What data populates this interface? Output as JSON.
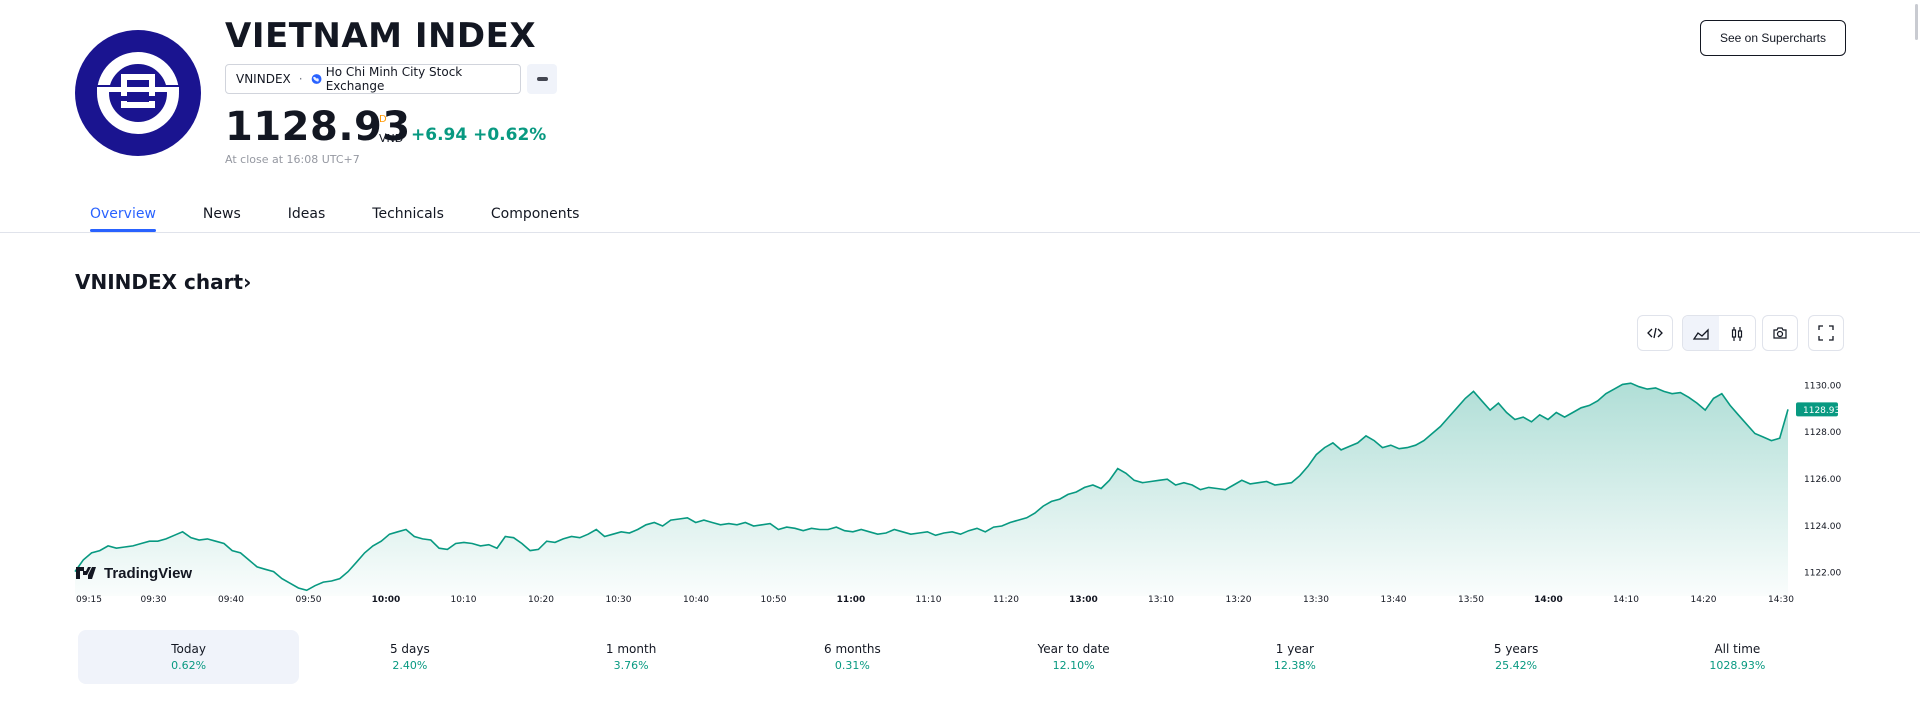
{
  "header": {
    "title": "VIETNAM INDEX",
    "symbol": "VNINDEX",
    "separator": "·",
    "exchange": "Ho Chi Minh City Stock Exchange",
    "price": "1128.93",
    "price_flag": "D",
    "currency": "VND",
    "change": "+6.94  +0.62%",
    "close_time": "At close at 16:08 UTC+7",
    "supercharts_label": "See on Supercharts"
  },
  "tabs": [
    {
      "label": "Overview",
      "active": true
    },
    {
      "label": "News"
    },
    {
      "label": "Ideas"
    },
    {
      "label": "Technicals"
    },
    {
      "label": "Components"
    }
  ],
  "chart_section": {
    "heading": "VNINDEX chart",
    "heading_chevron": "›",
    "watermark": "TradingView"
  },
  "icons": {
    "embed": "code-icon",
    "area": "area-chart-icon",
    "candles": "candles-icon",
    "snapshot": "camera-icon",
    "fullscreen": "fullscreen-icon",
    "more": "more-icon",
    "globe": "globe-icon"
  },
  "colors": {
    "accent": "#2962ff",
    "positive": "#089981",
    "logo_bg": "#1a1490",
    "flag": "#ff9800"
  },
  "chart_data": {
    "type": "area",
    "x_tick_labels": [
      "09:15",
      "09:30",
      "09:40",
      "09:50",
      "10:00",
      "10:10",
      "10:20",
      "10:30",
      "10:40",
      "10:50",
      "11:00",
      "11:10",
      "11:20",
      "13:00",
      "13:10",
      "13:20",
      "13:30",
      "13:40",
      "13:50",
      "14:00",
      "14:10",
      "14:20",
      "14:30"
    ],
    "bold_ticks": [
      "10:00",
      "11:00",
      "13:00",
      "14:00"
    ],
    "y_tick_labels": [
      "1130.00",
      "1128.00",
      "1126.00",
      "1124.00",
      "1122.00"
    ],
    "y_ticks": [
      1130,
      1128,
      1126,
      1124,
      1122
    ],
    "ylim": [
      1121.3,
      1130.7
    ],
    "last_value_label": "1128.93",
    "series": [
      {
        "values": [
          1122.0,
          1122.5,
          1122.8,
          1122.9,
          1123.1,
          1123.0,
          1123.05,
          1123.1,
          1123.2,
          1123.3,
          1123.3,
          1123.4,
          1123.55,
          1123.7,
          1123.45,
          1123.35,
          1123.4,
          1123.3,
          1123.2,
          1122.9,
          1122.8,
          1122.5,
          1122.2,
          1122.1,
          1122.0,
          1121.7,
          1121.5,
          1121.3,
          1121.2,
          1121.4,
          1121.55,
          1121.6,
          1121.7,
          1122.0,
          1122.4,
          1122.8,
          1123.1,
          1123.3,
          1123.6,
          1123.7,
          1123.8,
          1123.5,
          1123.4,
          1123.35,
          1123.0,
          1122.95,
          1123.2,
          1123.25,
          1123.2,
          1123.1,
          1123.15,
          1123.0,
          1123.5,
          1123.45,
          1123.2,
          1122.9,
          1122.95,
          1123.3,
          1123.25,
          1123.4,
          1123.5,
          1123.45,
          1123.6,
          1123.8,
          1123.5,
          1123.6,
          1123.7,
          1123.65,
          1123.8,
          1124.0,
          1124.1,
          1123.95,
          1124.2,
          1124.25,
          1124.3,
          1124.1,
          1124.2,
          1124.1,
          1124.0,
          1124.05,
          1124.0,
          1124.1,
          1123.95,
          1124.0,
          1124.05,
          1123.8,
          1123.9,
          1123.85,
          1123.75,
          1123.85,
          1123.8,
          1123.8,
          1123.9,
          1123.75,
          1123.7,
          1123.8,
          1123.7,
          1123.6,
          1123.65,
          1123.8,
          1123.7,
          1123.6,
          1123.65,
          1123.7,
          1123.55,
          1123.65,
          1123.7,
          1123.6,
          1123.75,
          1123.85,
          1123.7,
          1123.9,
          1123.95,
          1124.1,
          1124.2,
          1124.3,
          1124.5,
          1124.8,
          1125.0,
          1125.1,
          1125.3,
          1125.4,
          1125.6,
          1125.7,
          1125.55,
          1125.9,
          1126.4,
          1126.2,
          1125.9,
          1125.8,
          1125.85,
          1125.9,
          1125.95,
          1125.7,
          1125.8,
          1125.7,
          1125.5,
          1125.6,
          1125.55,
          1125.5,
          1125.7,
          1125.9,
          1125.75,
          1125.8,
          1125.85,
          1125.7,
          1125.75,
          1125.8,
          1126.1,
          1126.5,
          1127.0,
          1127.3,
          1127.5,
          1127.2,
          1127.35,
          1127.5,
          1127.8,
          1127.6,
          1127.3,
          1127.4,
          1127.25,
          1127.3,
          1127.4,
          1127.6,
          1127.9,
          1128.2,
          1128.6,
          1129.0,
          1129.4,
          1129.7,
          1129.3,
          1128.9,
          1129.2,
          1128.8,
          1128.5,
          1128.6,
          1128.4,
          1128.7,
          1128.5,
          1128.8,
          1128.6,
          1128.8,
          1129.0,
          1129.1,
          1129.3,
          1129.6,
          1129.8,
          1130.0,
          1130.05,
          1129.9,
          1129.8,
          1129.85,
          1129.7,
          1129.6,
          1129.65,
          1129.45,
          1129.2,
          1128.9,
          1129.4,
          1129.6,
          1129.1,
          1128.7,
          1128.3,
          1127.9,
          1127.75,
          1127.6,
          1127.7,
          1128.93
        ]
      }
    ]
  },
  "periods": [
    {
      "label": "Today",
      "value": "0.62%",
      "active": true
    },
    {
      "label": "5 days",
      "value": "2.40%"
    },
    {
      "label": "1 month",
      "value": "3.76%"
    },
    {
      "label": "6 months",
      "value": "0.31%"
    },
    {
      "label": "Year to date",
      "value": "12.10%"
    },
    {
      "label": "1 year",
      "value": "12.38%"
    },
    {
      "label": "5 years",
      "value": "25.42%"
    },
    {
      "label": "All time",
      "value": "1028.93%"
    }
  ]
}
